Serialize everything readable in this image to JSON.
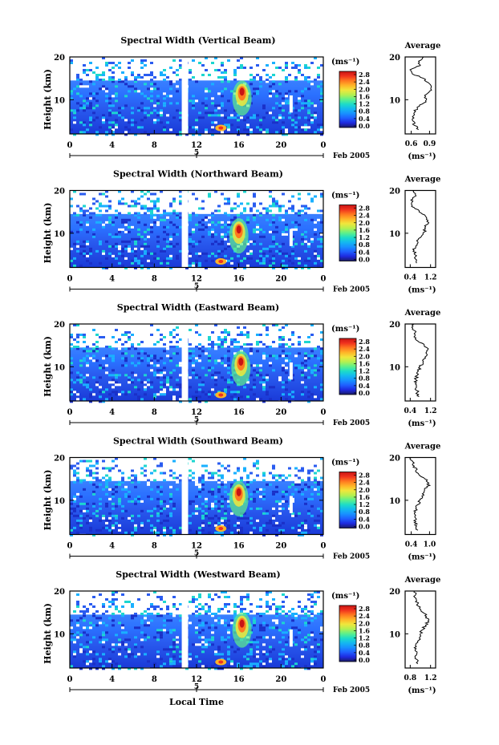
{
  "figure": {
    "xlabel_bottom": "Local Time",
    "date_label": "Feb 2005",
    "colorbar_unit": "(ms⁻¹)",
    "colorbar_ticks": [
      "2.8",
      "2.4",
      "2.0",
      "1.6",
      "1.2",
      "0.8",
      "0.4",
      "0.0"
    ],
    "colorbar_colors": [
      "#1a1a66",
      "#1e2adf",
      "#1f5fff",
      "#1890ff",
      "#14b8f0",
      "#1ddcc8",
      "#5ef08a",
      "#b4f050",
      "#f0e63c",
      "#ffb428",
      "#ff7820",
      "#f0321e",
      "#c81414"
    ],
    "x_ticks": [
      "0",
      "4",
      "8",
      "12",
      "16",
      "20",
      "0"
    ],
    "x_day_label": "5",
    "avg_title": "Average",
    "avg_xlabel": "(ms⁻¹)"
  },
  "chart_data": [
    {
      "type": "heatmap",
      "title": "Spectral Width (Vertical Beam)",
      "ylabel": "Height (km)",
      "xlabel": "",
      "x_range_hours": [
        0,
        24
      ],
      "y_range_km": [
        2,
        20
      ],
      "y_ticks": [
        "20",
        "10"
      ],
      "data_gap_hours": [
        10.6,
        11.2
      ],
      "max_region": {
        "time_hours": 16.3,
        "height_km": 11.5,
        "value": 2.6
      },
      "average_profile": {
        "x_ticks": [
          "0.6",
          "0.9"
        ],
        "x_range": [
          0.5,
          1.0
        ],
        "height_km": [
          3,
          4,
          5,
          6,
          7,
          8,
          9,
          10,
          11,
          12,
          13,
          14,
          15,
          16,
          17,
          18,
          19,
          20
        ],
        "value": [
          0.72,
          0.65,
          0.63,
          0.62,
          0.65,
          0.7,
          0.78,
          0.85,
          0.82,
          0.9,
          0.93,
          0.88,
          0.8,
          0.62,
          0.58,
          0.75,
          0.72,
          0.8
        ]
      }
    },
    {
      "type": "heatmap",
      "title": "Spectral Width (Northward Beam)",
      "ylabel": "Height (km)",
      "xlabel": "",
      "x_range_hours": [
        0,
        24
      ],
      "y_range_km": [
        2,
        20
      ],
      "y_ticks": [
        "20",
        "10"
      ],
      "data_gap_hours": [
        10.6,
        11.2
      ],
      "max_region": {
        "time_hours": 16.0,
        "height_km": 10.5,
        "value": 2.7
      },
      "average_profile": {
        "x_ticks": [
          "0.4",
          "1.2"
        ],
        "x_range": [
          0.2,
          1.4
        ],
        "height_km": [
          3,
          4,
          5,
          6,
          7,
          8,
          9,
          10,
          11,
          12,
          13,
          14,
          15,
          16,
          17,
          18,
          19,
          20
        ],
        "value": [
          0.65,
          0.6,
          0.58,
          0.55,
          0.62,
          0.7,
          0.8,
          0.9,
          1.0,
          1.05,
          1.1,
          1.0,
          0.75,
          0.55,
          0.45,
          0.5,
          0.6,
          0.55
        ]
      }
    },
    {
      "type": "heatmap",
      "title": "Spectral Width (Eastward Beam)",
      "ylabel": "Height (km)",
      "xlabel": "",
      "x_range_hours": [
        0,
        24
      ],
      "y_range_km": [
        2,
        20
      ],
      "y_ticks": [
        "20",
        "10"
      ],
      "data_gap_hours": [
        10.6,
        11.2
      ],
      "max_region": {
        "time_hours": 16.2,
        "height_km": 10.8,
        "value": 2.6
      },
      "average_profile": {
        "x_ticks": [
          "0.4",
          "1.2"
        ],
        "x_range": [
          0.2,
          1.4
        ],
        "height_km": [
          3,
          4,
          5,
          6,
          7,
          8,
          9,
          10,
          11,
          12,
          13,
          14,
          15,
          16,
          17,
          18,
          19,
          20
        ],
        "value": [
          0.75,
          0.68,
          0.62,
          0.6,
          0.62,
          0.68,
          0.72,
          0.78,
          0.9,
          1.0,
          1.05,
          1.1,
          0.95,
          0.7,
          0.55,
          0.6,
          0.5,
          0.55
        ]
      }
    },
    {
      "type": "heatmap",
      "title": "Spectral Width (Southward Beam)",
      "ylabel": "Height (km)",
      "xlabel": "",
      "x_range_hours": [
        0,
        24
      ],
      "y_range_km": [
        2,
        20
      ],
      "y_ticks": [
        "20",
        "10"
      ],
      "data_gap_hours": [
        10.6,
        11.2
      ],
      "max_region": {
        "time_hours": 16.0,
        "height_km": 11.5,
        "value": 2.7
      },
      "average_profile": {
        "x_ticks": [
          "0.4",
          "1.0"
        ],
        "x_range": [
          0.2,
          1.2
        ],
        "height_km": [
          3,
          4,
          5,
          6,
          7,
          8,
          9,
          10,
          11,
          12,
          13,
          14,
          15,
          16,
          17,
          18,
          19,
          20
        ],
        "value": [
          0.62,
          0.58,
          0.55,
          0.52,
          0.5,
          0.55,
          0.62,
          0.68,
          0.75,
          0.82,
          0.92,
          0.98,
          0.85,
          0.65,
          0.55,
          0.5,
          0.45,
          0.4
        ]
      }
    },
    {
      "type": "heatmap",
      "title": "Spectral Width (Westward Beam)",
      "ylabel": "Height (km)",
      "xlabel": "Local Time",
      "x_range_hours": [
        0,
        24
      ],
      "y_range_km": [
        2,
        20
      ],
      "y_ticks": [
        "20",
        "10"
      ],
      "data_gap_hours": [
        10.6,
        11.2
      ],
      "max_region": {
        "time_hours": 16.3,
        "height_km": 12.0,
        "value": 2.8
      },
      "average_profile": {
        "x_ticks": [
          "0.8",
          "1.2"
        ],
        "x_range": [
          0.7,
          1.3
        ],
        "height_km": [
          3,
          4,
          5,
          6,
          7,
          8,
          9,
          10,
          11,
          12,
          13,
          14,
          15,
          16,
          17,
          18,
          19,
          20
        ],
        "value": [
          0.95,
          0.93,
          0.92,
          0.9,
          0.92,
          0.95,
          0.98,
          1.0,
          1.05,
          1.1,
          1.15,
          1.12,
          1.05,
          0.98,
          0.95,
          0.92,
          0.9,
          0.88
        ]
      }
    }
  ]
}
